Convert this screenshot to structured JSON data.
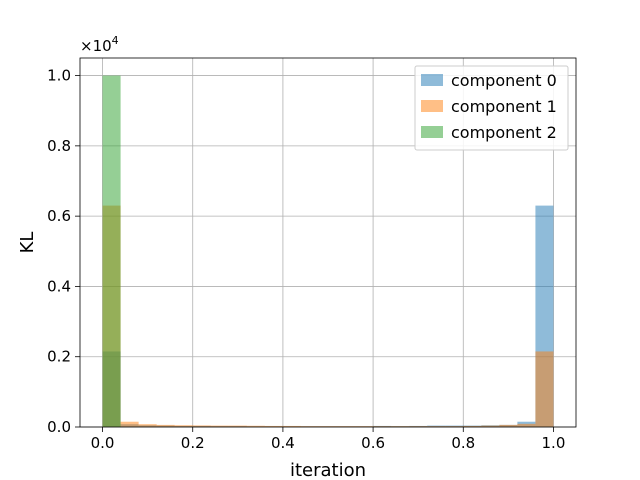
{
  "chart_data": {
    "type": "bar",
    "subtype": "histogram",
    "xlabel": "iteration",
    "ylabel": "KL",
    "y_offset_label": "×10",
    "y_offset_exponent": "4",
    "xlim": [
      -0.05,
      1.05
    ],
    "ylim": [
      0,
      10500
    ],
    "grid": true,
    "legend_position": "top-right",
    "x_ticks": [
      0.0,
      0.2,
      0.4,
      0.6,
      0.8,
      1.0
    ],
    "x_tick_labels": [
      "0.0",
      "0.2",
      "0.4",
      "0.6",
      "0.8",
      "1.0"
    ],
    "y_ticks": [
      0,
      2000,
      4000,
      6000,
      8000,
      10000
    ],
    "y_tick_labels": [
      "0.0",
      "0.2",
      "0.4",
      "0.6",
      "0.8",
      "1.0"
    ],
    "bin_edges": [
      0.0,
      0.04,
      0.08,
      0.12,
      0.16,
      0.2,
      0.24,
      0.28,
      0.32,
      0.36,
      0.4,
      0.44,
      0.48,
      0.52,
      0.56,
      0.6,
      0.64,
      0.68,
      0.72,
      0.76,
      0.8,
      0.84,
      0.88,
      0.92,
      0.96,
      1.0
    ],
    "series": [
      {
        "name": "component 0",
        "color": "#1f77b4",
        "values": [
          2150,
          80,
          50,
          40,
          30,
          30,
          25,
          25,
          20,
          20,
          20,
          20,
          20,
          20,
          20,
          30,
          25,
          30,
          40,
          40,
          40,
          50,
          60,
          150,
          6300
        ]
      },
      {
        "name": "component 1",
        "color": "#ff7f0e",
        "values": [
          6300,
          150,
          80,
          60,
          50,
          45,
          40,
          40,
          35,
          30,
          30,
          25,
          25,
          25,
          25,
          25,
          25,
          25,
          25,
          25,
          30,
          40,
          60,
          90,
          2150
        ]
      },
      {
        "name": "component 2",
        "color": "#2ca02c",
        "values": [
          10000,
          5,
          3,
          3,
          2,
          2,
          2,
          2,
          2,
          2,
          2,
          2,
          2,
          2,
          2,
          2,
          2,
          2,
          2,
          2,
          2,
          2,
          2,
          2,
          2
        ]
      }
    ]
  }
}
